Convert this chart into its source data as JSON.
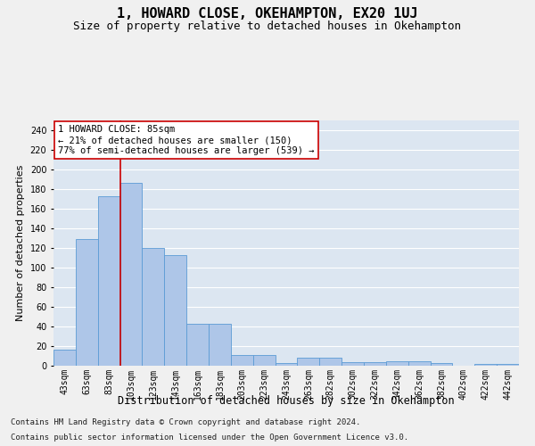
{
  "title": "1, HOWARD CLOSE, OKEHAMPTON, EX20 1UJ",
  "subtitle": "Size of property relative to detached houses in Okehampton",
  "xlabel": "Distribution of detached houses by size in Okehampton",
  "ylabel": "Number of detached properties",
  "categories": [
    "43sqm",
    "63sqm",
    "83sqm",
    "103sqm",
    "123sqm",
    "143sqm",
    "163sqm",
    "183sqm",
    "203sqm",
    "223sqm",
    "243sqm",
    "263sqm",
    "282sqm",
    "302sqm",
    "322sqm",
    "342sqm",
    "362sqm",
    "382sqm",
    "402sqm",
    "422sqm",
    "442sqm"
  ],
  "values": [
    16,
    129,
    173,
    186,
    120,
    113,
    43,
    43,
    11,
    11,
    3,
    8,
    8,
    4,
    4,
    5,
    5,
    3,
    0,
    2,
    2
  ],
  "bar_color": "#aec6e8",
  "bar_edgecolor": "#5b9bd5",
  "background_color": "#dce6f1",
  "grid_color": "#ffffff",
  "vline_x": 2.5,
  "vline_color": "#cc0000",
  "annotation_text": "1 HOWARD CLOSE: 85sqm\n← 21% of detached houses are smaller (150)\n77% of semi-detached houses are larger (539) →",
  "annotation_box_facecolor": "#ffffff",
  "annotation_box_edgecolor": "#cc0000",
  "ylim": [
    0,
    250
  ],
  "yticks": [
    0,
    20,
    40,
    60,
    80,
    100,
    120,
    140,
    160,
    180,
    200,
    220,
    240
  ],
  "footnote1": "Contains HM Land Registry data © Crown copyright and database right 2024.",
  "footnote2": "Contains public sector information licensed under the Open Government Licence v3.0.",
  "title_fontsize": 11,
  "subtitle_fontsize": 9,
  "xlabel_fontsize": 8.5,
  "ylabel_fontsize": 8,
  "tick_fontsize": 7,
  "annotation_fontsize": 7.5,
  "footnote_fontsize": 6.5,
  "fig_facecolor": "#f0f0f0"
}
